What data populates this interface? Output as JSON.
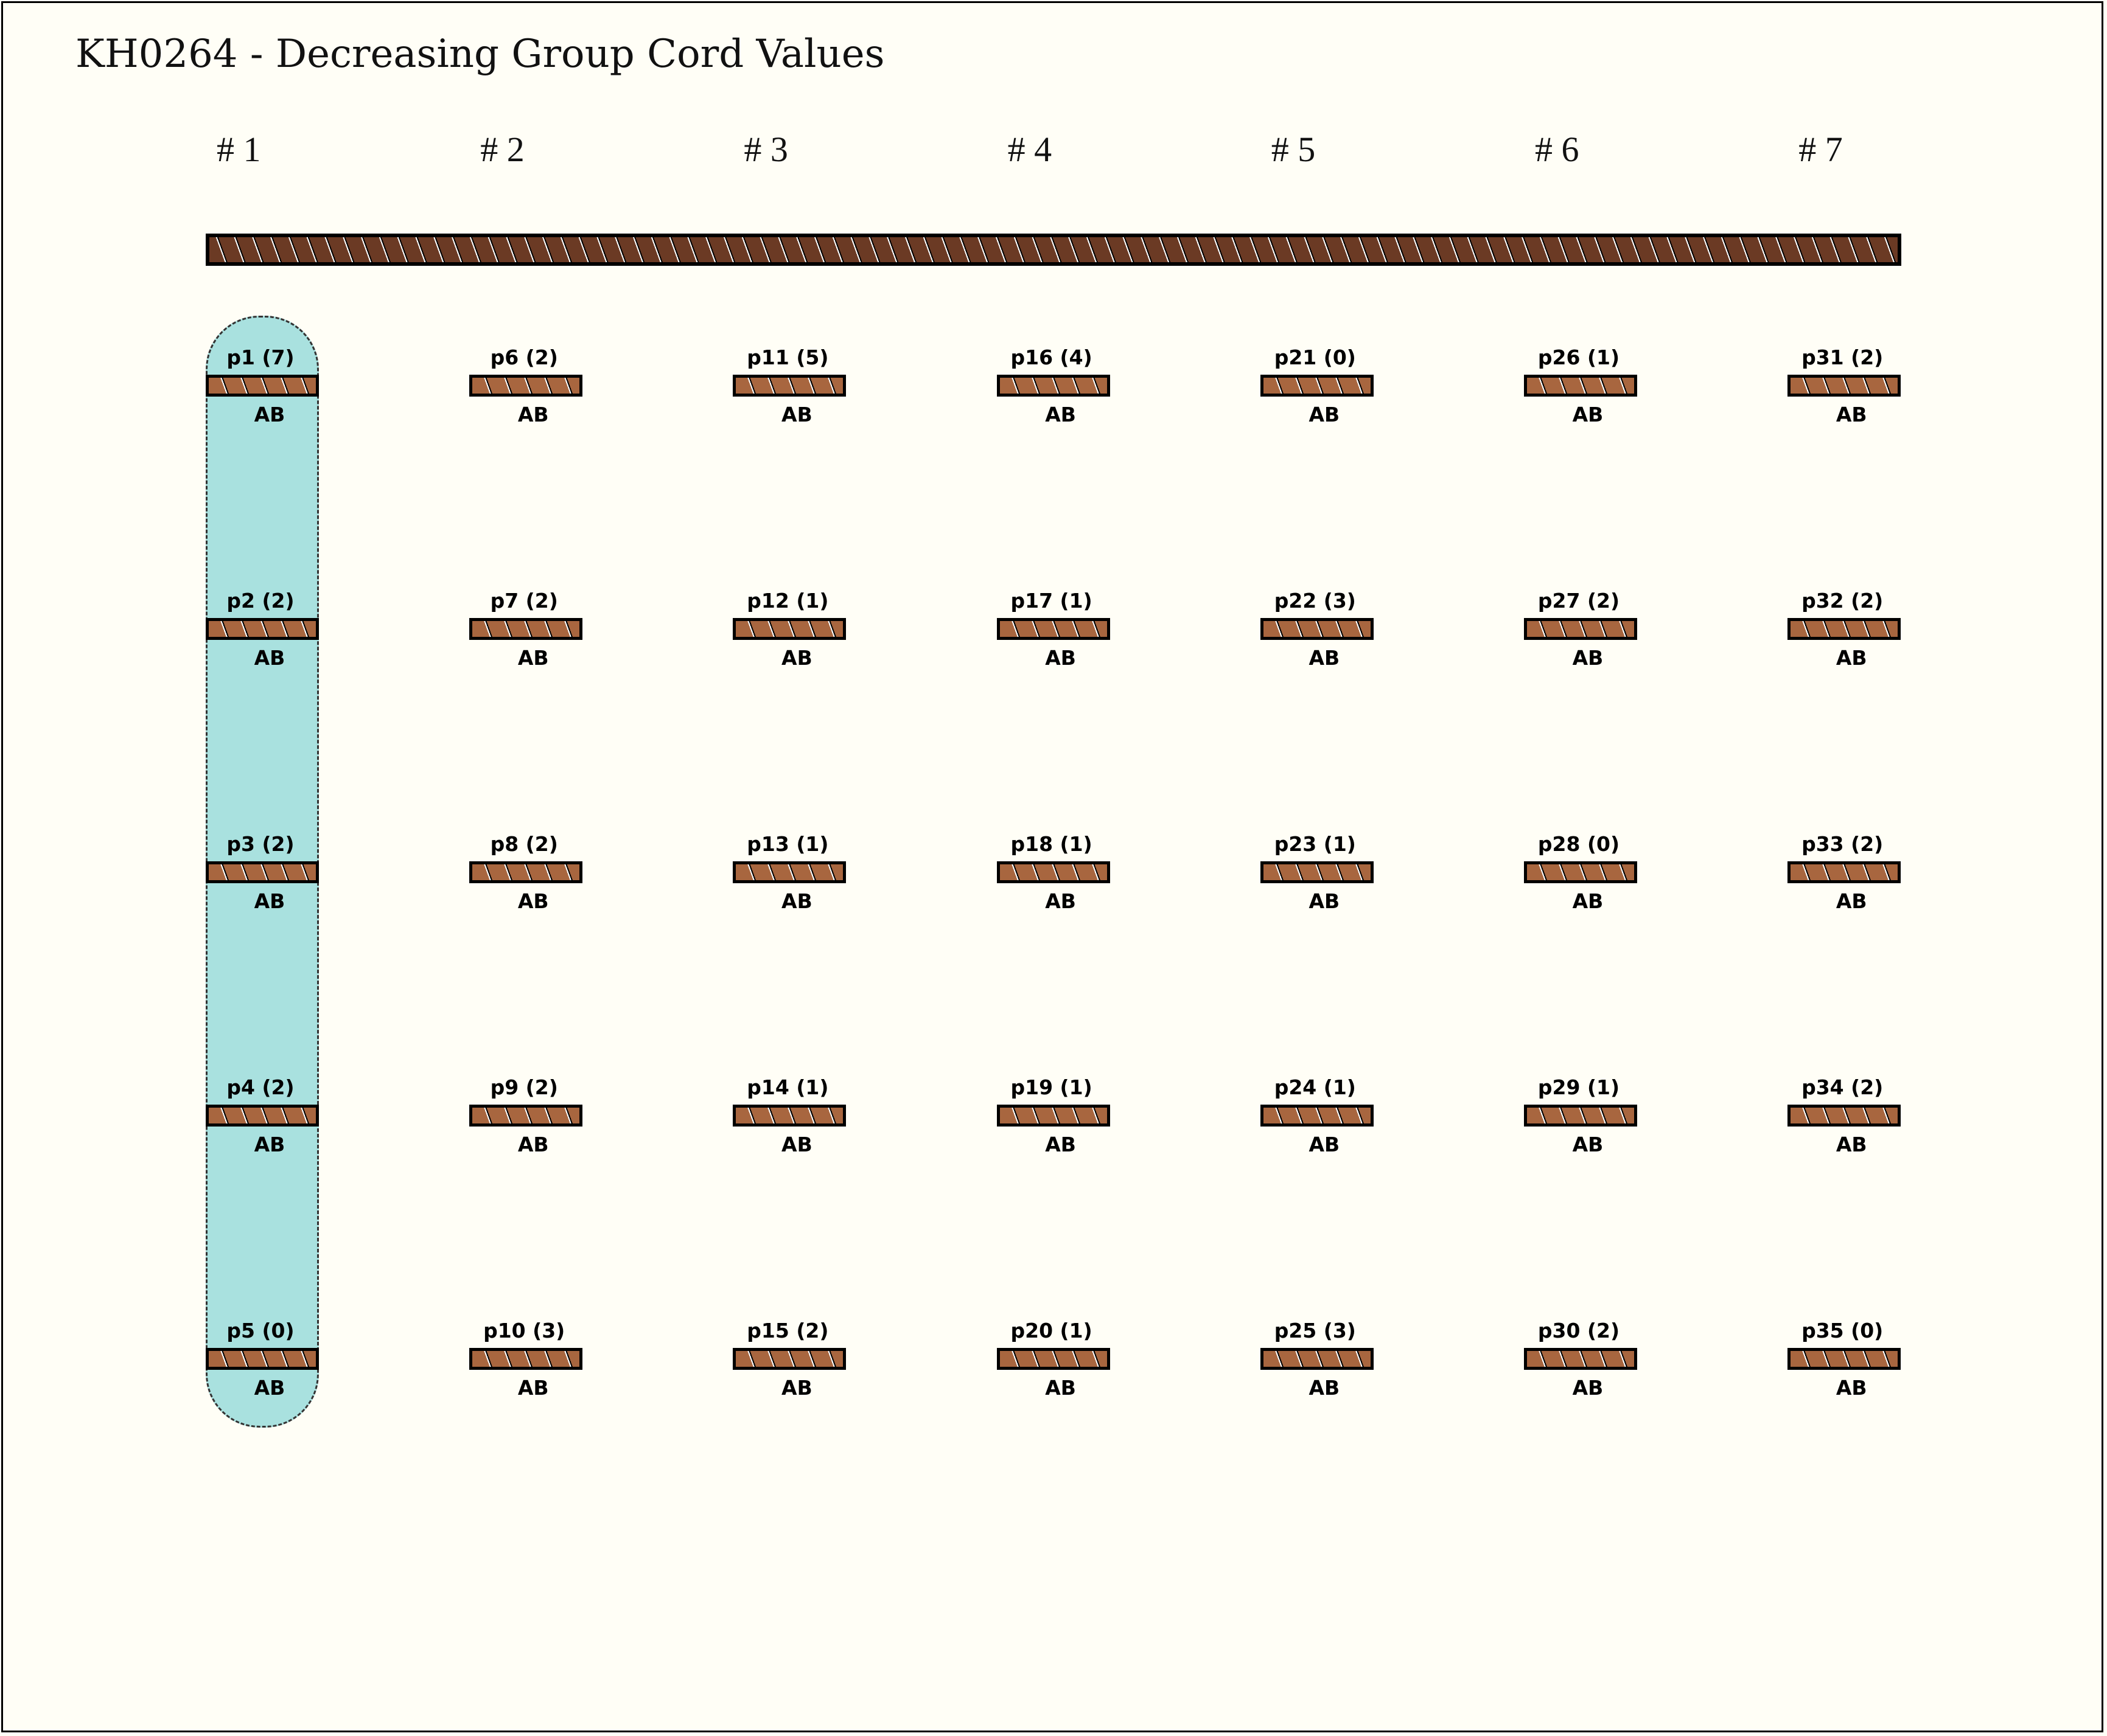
{
  "title": "KH0264 - Decreasing Group Cord Values",
  "colors": {
    "background": "#fffef6",
    "main_cord": "#6b3a24",
    "pendant": "#a8663f",
    "highlight": "#a9e1df"
  },
  "highlighted_group": 1,
  "groups": [
    {
      "label": "# 1",
      "pendants": [
        {
          "id": "p1",
          "value": 7,
          "color": "AB"
        },
        {
          "id": "p2",
          "value": 2,
          "color": "AB"
        },
        {
          "id": "p3",
          "value": 2,
          "color": "AB"
        },
        {
          "id": "p4",
          "value": 2,
          "color": "AB"
        },
        {
          "id": "p5",
          "value": 0,
          "color": "AB"
        }
      ]
    },
    {
      "label": "# 2",
      "pendants": [
        {
          "id": "p6",
          "value": 2,
          "color": "AB"
        },
        {
          "id": "p7",
          "value": 2,
          "color": "AB"
        },
        {
          "id": "p8",
          "value": 2,
          "color": "AB"
        },
        {
          "id": "p9",
          "value": 2,
          "color": "AB"
        },
        {
          "id": "p10",
          "value": 3,
          "color": "AB"
        }
      ]
    },
    {
      "label": "# 3",
      "pendants": [
        {
          "id": "p11",
          "value": 5,
          "color": "AB"
        },
        {
          "id": "p12",
          "value": 1,
          "color": "AB"
        },
        {
          "id": "p13",
          "value": 1,
          "color": "AB"
        },
        {
          "id": "p14",
          "value": 1,
          "color": "AB"
        },
        {
          "id": "p15",
          "value": 2,
          "color": "AB"
        }
      ]
    },
    {
      "label": "# 4",
      "pendants": [
        {
          "id": "p16",
          "value": 4,
          "color": "AB"
        },
        {
          "id": "p17",
          "value": 1,
          "color": "AB"
        },
        {
          "id": "p18",
          "value": 1,
          "color": "AB"
        },
        {
          "id": "p19",
          "value": 1,
          "color": "AB"
        },
        {
          "id": "p20",
          "value": 1,
          "color": "AB"
        }
      ]
    },
    {
      "label": "# 5",
      "pendants": [
        {
          "id": "p21",
          "value": 0,
          "color": "AB"
        },
        {
          "id": "p22",
          "value": 3,
          "color": "AB"
        },
        {
          "id": "p23",
          "value": 1,
          "color": "AB"
        },
        {
          "id": "p24",
          "value": 1,
          "color": "AB"
        },
        {
          "id": "p25",
          "value": 3,
          "color": "AB"
        }
      ]
    },
    {
      "label": "# 6",
      "pendants": [
        {
          "id": "p26",
          "value": 1,
          "color": "AB"
        },
        {
          "id": "p27",
          "value": 2,
          "color": "AB"
        },
        {
          "id": "p28",
          "value": 0,
          "color": "AB"
        },
        {
          "id": "p29",
          "value": 1,
          "color": "AB"
        },
        {
          "id": "p30",
          "value": 2,
          "color": "AB"
        }
      ]
    },
    {
      "label": "# 7",
      "pendants": [
        {
          "id": "p31",
          "value": 2,
          "color": "AB"
        },
        {
          "id": "p32",
          "value": 2,
          "color": "AB"
        },
        {
          "id": "p33",
          "value": 2,
          "color": "AB"
        },
        {
          "id": "p34",
          "value": 2,
          "color": "AB"
        },
        {
          "id": "p35",
          "value": 0,
          "color": "AB"
        }
      ]
    }
  ]
}
